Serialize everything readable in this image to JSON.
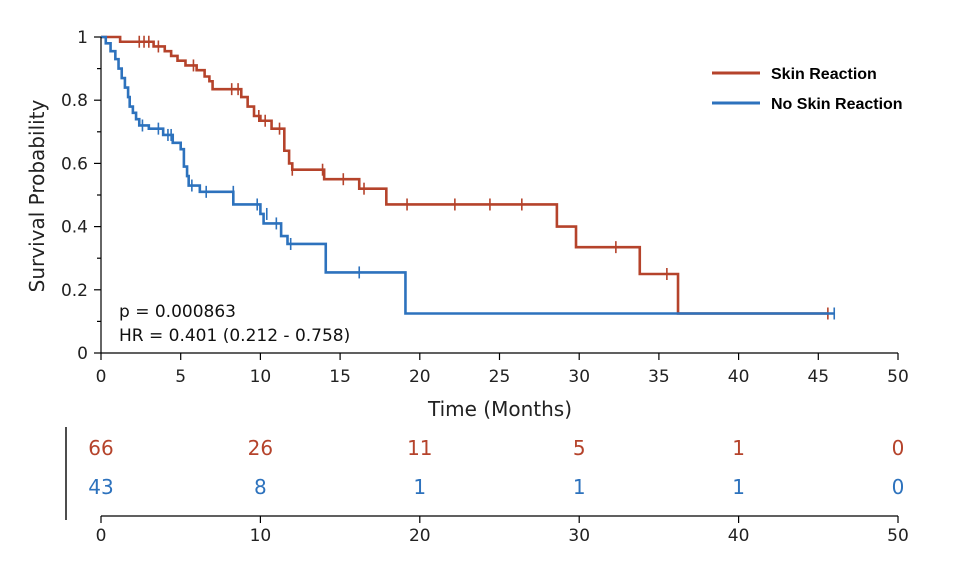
{
  "chart_data": {
    "type": "line",
    "subtype": "kaplan-meier",
    "xlabel": "Time (Months)",
    "ylabel": "Survival Probability",
    "xlim": [
      0,
      50
    ],
    "ylim": [
      0,
      1
    ],
    "xticks": [
      "0",
      "5",
      "10",
      "15",
      "20",
      "25",
      "30",
      "35",
      "40",
      "45",
      "50"
    ],
    "yticks": [
      "0",
      "0.2",
      "0.4",
      "0.6",
      "0.8",
      "1"
    ],
    "grid": false,
    "legend_position": "top-right",
    "annotations": {
      "p_value": "p = 0.000863",
      "hazard_ratio": "HR = 0.401 (0.212 - 0.758)"
    },
    "series": [
      {
        "name": "Skin Reaction",
        "color": "#b5432b",
        "steps": [
          [
            0,
            1
          ],
          [
            1.2,
            0.985
          ],
          [
            3.3,
            0.97
          ],
          [
            4.0,
            0.955
          ],
          [
            4.4,
            0.94
          ],
          [
            4.8,
            0.925
          ],
          [
            5.3,
            0.91
          ],
          [
            6.0,
            0.895
          ],
          [
            6.5,
            0.875
          ],
          [
            6.8,
            0.86
          ],
          [
            7.0,
            0.835
          ],
          [
            8.8,
            0.81
          ],
          [
            9.2,
            0.78
          ],
          [
            9.6,
            0.75
          ],
          [
            10.0,
            0.735
          ],
          [
            10.7,
            0.71
          ],
          [
            11.5,
            0.64
          ],
          [
            11.8,
            0.6
          ],
          [
            12.0,
            0.58
          ],
          [
            14.0,
            0.55
          ],
          [
            16.2,
            0.52
          ],
          [
            17.9,
            0.47
          ],
          [
            28.6,
            0.4
          ],
          [
            29.8,
            0.335
          ],
          [
            33.8,
            0.25
          ],
          [
            36.2,
            0.125
          ],
          [
            45.6,
            0.125
          ]
        ],
        "censored": [
          [
            2.4,
            0.985
          ],
          [
            2.7,
            0.985
          ],
          [
            3.0,
            0.985
          ],
          [
            3.6,
            0.97
          ],
          [
            5.8,
            0.91
          ],
          [
            8.2,
            0.835
          ],
          [
            8.6,
            0.835
          ],
          [
            9.9,
            0.75
          ],
          [
            10.3,
            0.735
          ],
          [
            11.2,
            0.71
          ],
          [
            12.0,
            0.58
          ],
          [
            13.9,
            0.58
          ],
          [
            15.2,
            0.55
          ],
          [
            16.5,
            0.52
          ],
          [
            19.2,
            0.47
          ],
          [
            22.2,
            0.47
          ],
          [
            24.4,
            0.47
          ],
          [
            26.4,
            0.47
          ],
          [
            32.3,
            0.335
          ],
          [
            35.5,
            0.25
          ],
          [
            45.6,
            0.125
          ]
        ]
      },
      {
        "name": "No Skin Reaction",
        "color": "#2d72bd",
        "steps": [
          [
            0,
            1
          ],
          [
            0.3,
            0.98
          ],
          [
            0.6,
            0.955
          ],
          [
            0.9,
            0.93
          ],
          [
            1.1,
            0.9
          ],
          [
            1.3,
            0.87
          ],
          [
            1.5,
            0.84
          ],
          [
            1.7,
            0.81
          ],
          [
            1.8,
            0.78
          ],
          [
            2.0,
            0.76
          ],
          [
            2.2,
            0.74
          ],
          [
            2.4,
            0.72
          ],
          [
            3.0,
            0.71
          ],
          [
            3.9,
            0.69
          ],
          [
            4.5,
            0.665
          ],
          [
            5.0,
            0.645
          ],
          [
            5.2,
            0.59
          ],
          [
            5.4,
            0.56
          ],
          [
            5.5,
            0.53
          ],
          [
            6.2,
            0.51
          ],
          [
            8.3,
            0.47
          ],
          [
            10.0,
            0.44
          ],
          [
            10.2,
            0.41
          ],
          [
            11.3,
            0.37
          ],
          [
            11.7,
            0.345
          ],
          [
            14.1,
            0.255
          ],
          [
            19.1,
            0.125
          ],
          [
            46.0,
            0.125
          ]
        ],
        "censored": [
          [
            2.6,
            0.72
          ],
          [
            3.6,
            0.71
          ],
          [
            4.2,
            0.69
          ],
          [
            4.4,
            0.69
          ],
          [
            5.7,
            0.53
          ],
          [
            6.6,
            0.51
          ],
          [
            8.3,
            0.51
          ],
          [
            9.8,
            0.47
          ],
          [
            10.4,
            0.44
          ],
          [
            11.0,
            0.41
          ],
          [
            11.9,
            0.345
          ],
          [
            16.2,
            0.255
          ],
          [
            46.0,
            0.125
          ]
        ]
      }
    ],
    "risk_table": {
      "x": [
        "0",
        "10",
        "20",
        "30",
        "40",
        "50"
      ],
      "rows": [
        {
          "series": "Skin Reaction",
          "values": [
            "66",
            "26",
            "11",
            "5",
            "1",
            "0"
          ]
        },
        {
          "series": "No Skin Reaction",
          "values": [
            "43",
            "8",
            "1",
            "1",
            "1",
            "0"
          ]
        }
      ]
    }
  }
}
